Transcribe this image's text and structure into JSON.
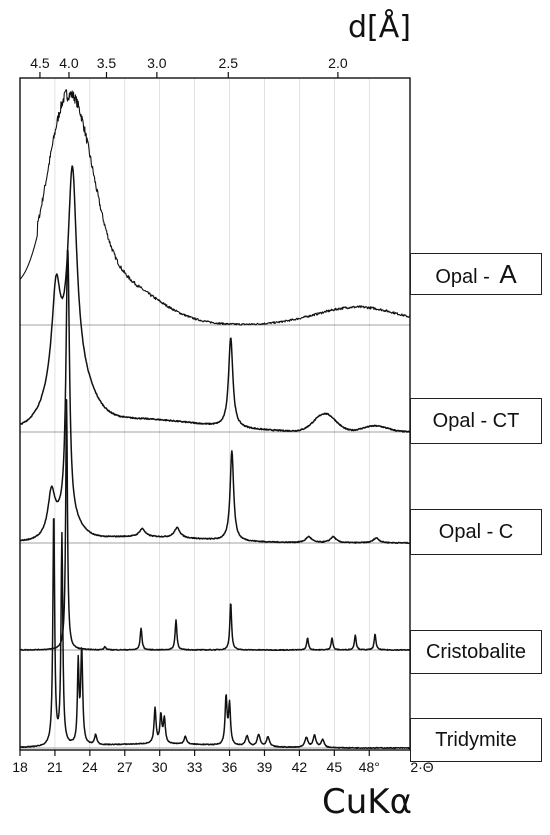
{
  "chart_data": {
    "type": "line",
    "top_axis": {
      "label": "d[Å]",
      "ticks": [
        {
          "value": 4.5,
          "label": "4.5"
        },
        {
          "value": 4.0,
          "label": "4.0"
        },
        {
          "value": 3.5,
          "label": "3.5"
        },
        {
          "value": 3.0,
          "label": "3.0"
        },
        {
          "value": 2.5,
          "label": "2.5"
        },
        {
          "value": 2.0,
          "label": "2.0"
        }
      ]
    },
    "x_axis": {
      "label": "CuKα",
      "unit_label": "2·Θ",
      "ticks": [
        18,
        21,
        24,
        27,
        30,
        33,
        36,
        39,
        42,
        45,
        48
      ],
      "tick_labels": [
        "18",
        "21",
        "24",
        "27",
        "30",
        "33",
        "36",
        "39",
        "42",
        "45",
        "48°"
      ],
      "range": [
        18,
        51.5
      ]
    },
    "series": [
      {
        "name": "Opal - A",
        "label_main": "Opal",
        "label_big": "A",
        "color": "#111111"
      },
      {
        "name": "Opal - CT",
        "label_main": "Opal - CT",
        "color": "#111111"
      },
      {
        "name": "Opal - C",
        "label_main": "Opal - C",
        "color": "#111111"
      },
      {
        "name": "Cristobalite",
        "label_main": "Cristobalite",
        "color": "#111111"
      },
      {
        "name": "Tridymite",
        "label_main": "Tridymite",
        "color": "#111111"
      }
    ],
    "grid": true
  }
}
